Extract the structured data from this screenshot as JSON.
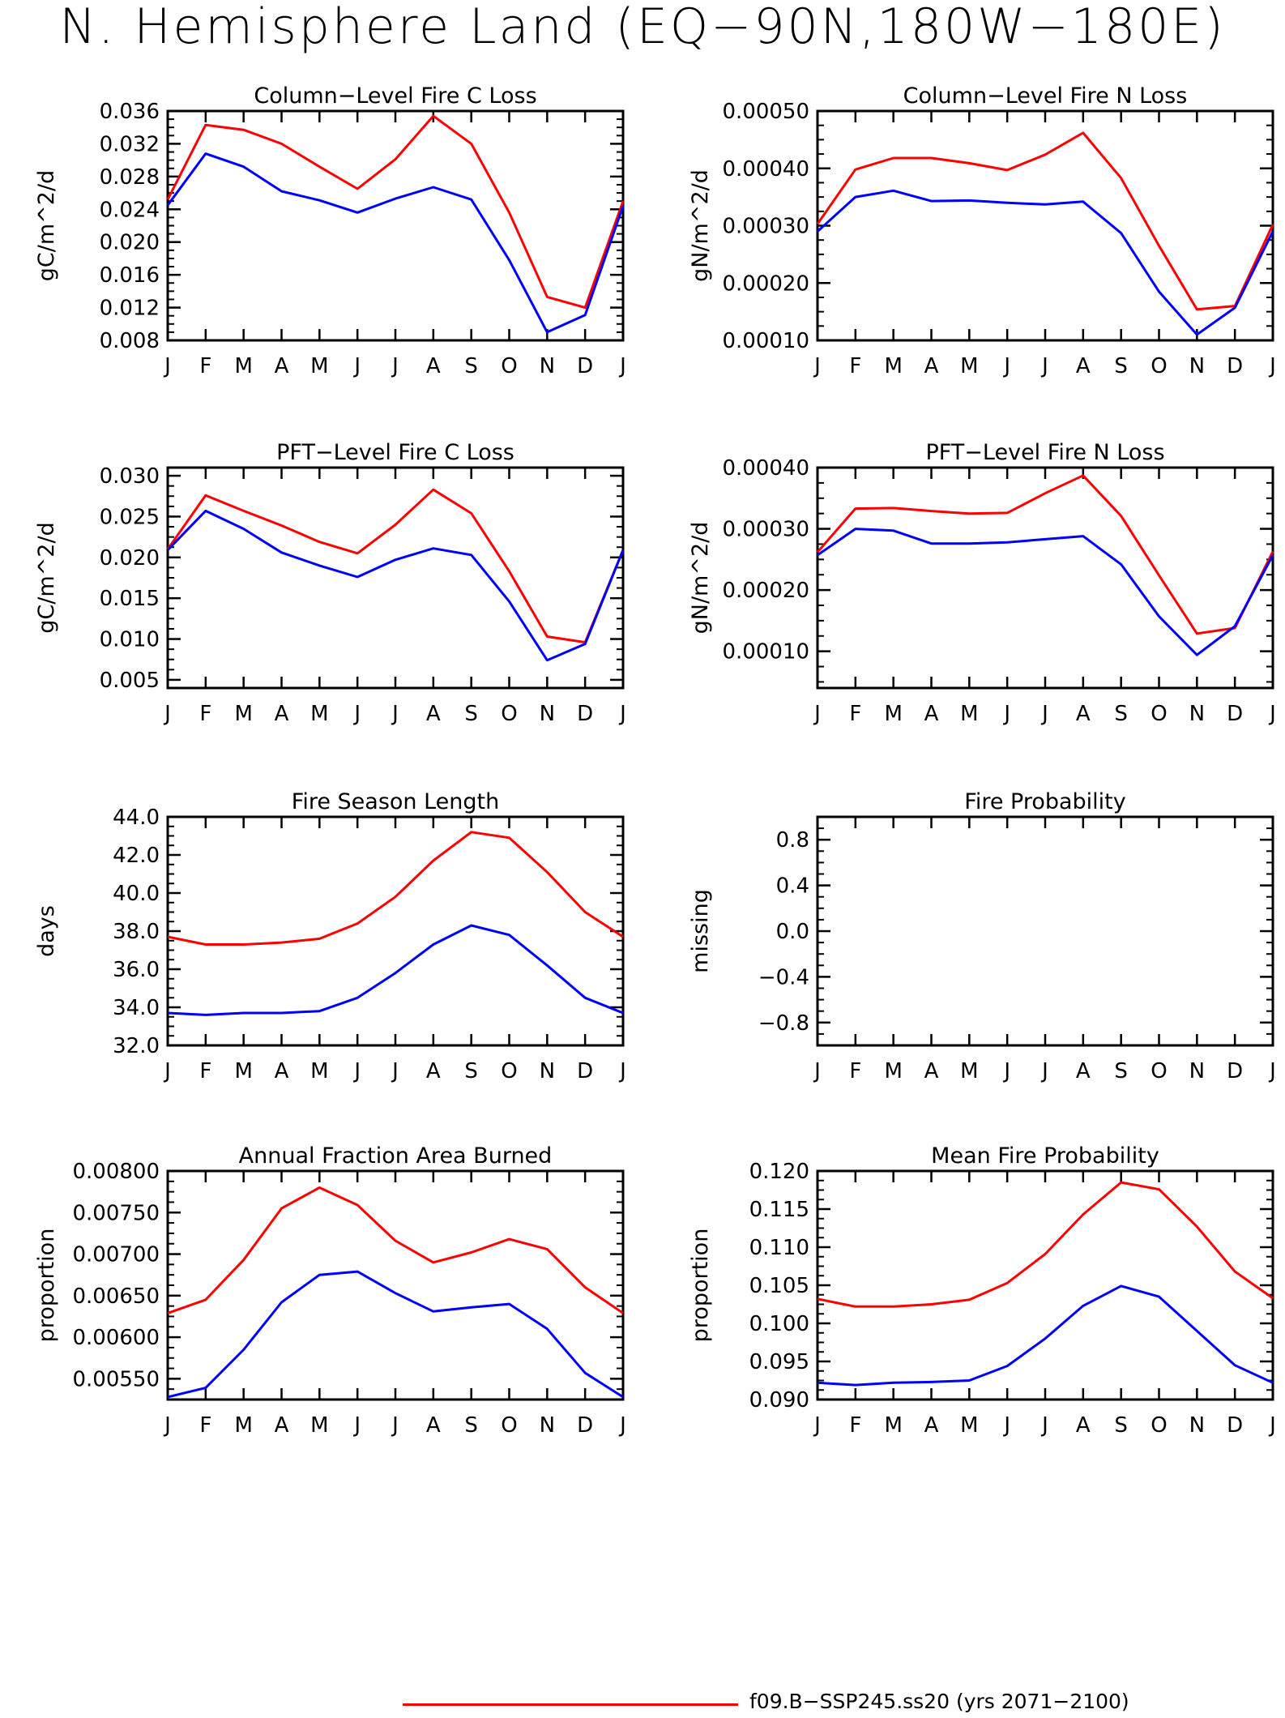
{
  "figure": {
    "title": "N. Hemisphere Land (EQ−90N,180W−180E)",
    "legend": [
      {
        "label": "f09.B−SSP245.ss20 (yrs 2071−2100)",
        "color": "#ff0000"
      }
    ]
  },
  "chart_data": [
    {
      "type": "line",
      "title": "Column−Level Fire C Loss",
      "ylabel": "gC/m^2/d",
      "xlabel": "",
      "categories": [
        "J",
        "F",
        "M",
        "A",
        "M",
        "J",
        "J",
        "A",
        "S",
        "O",
        "N",
        "D",
        "J"
      ],
      "ylim": [
        0.008,
        0.036
      ],
      "yticks": [
        0.008,
        0.012,
        0.016,
        0.02,
        0.024,
        0.028,
        0.032,
        0.036
      ],
      "ytick_labels": [
        "0.008",
        "0.012",
        "0.016",
        "0.020",
        "0.024",
        "0.028",
        "0.032",
        "0.036"
      ],
      "series": [
        {
          "color": "#ff0000",
          "values": [
            0.0252,
            0.0343,
            0.0337,
            0.032,
            0.0292,
            0.0265,
            0.0301,
            0.0354,
            0.032,
            0.0236,
            0.0133,
            0.012,
            0.025
          ]
        },
        {
          "color": "#0000ff",
          "values": [
            0.0245,
            0.0308,
            0.0292,
            0.0262,
            0.0251,
            0.0236,
            0.0253,
            0.0267,
            0.0252,
            0.0178,
            0.009,
            0.0111,
            0.0244
          ]
        }
      ]
    },
    {
      "type": "line",
      "title": "Column−Level Fire N Loss",
      "ylabel": "gN/m^2/d",
      "xlabel": "",
      "categories": [
        "J",
        "F",
        "M",
        "A",
        "M",
        "J",
        "J",
        "A",
        "S",
        "O",
        "N",
        "D",
        "J"
      ],
      "ylim": [
        0.0001,
        0.0005
      ],
      "yticks": [
        0.0001,
        0.0002,
        0.0003,
        0.0004,
        0.0005
      ],
      "ytick_labels": [
        "0.00010",
        "0.00020",
        "0.00030",
        "0.00040",
        "0.00050"
      ],
      "series": [
        {
          "color": "#ff0000",
          "values": [
            0.000303,
            0.000398,
            0.000418,
            0.000418,
            0.000409,
            0.000397,
            0.000424,
            0.000462,
            0.000383,
            0.000265,
            0.000154,
            0.00016,
            0.000302
          ]
        },
        {
          "color": "#0000ff",
          "values": [
            0.00029,
            0.00035,
            0.000361,
            0.000343,
            0.000344,
            0.00034,
            0.000337,
            0.000342,
            0.000287,
            0.000185,
            0.00011,
            0.000157,
            0.00029
          ]
        }
      ]
    },
    {
      "type": "line",
      "title": "PFT−Level Fire C Loss",
      "ylabel": "gC/m^2/d",
      "xlabel": "",
      "categories": [
        "J",
        "F",
        "M",
        "A",
        "M",
        "J",
        "J",
        "A",
        "S",
        "O",
        "N",
        "D",
        "J"
      ],
      "ylim": [
        0.004,
        0.031
      ],
      "yticks": [
        0.005,
        0.01,
        0.015,
        0.02,
        0.025,
        0.03
      ],
      "ytick_labels": [
        "0.005",
        "0.010",
        "0.015",
        "0.020",
        "0.025",
        "0.030"
      ],
      "series": [
        {
          "color": "#ff0000",
          "values": [
            0.021,
            0.0276,
            0.0257,
            0.0239,
            0.0219,
            0.0205,
            0.024,
            0.0283,
            0.0254,
            0.0183,
            0.0103,
            0.0096,
            0.0209
          ]
        },
        {
          "color": "#0000ff",
          "values": [
            0.0209,
            0.0257,
            0.0235,
            0.0206,
            0.019,
            0.0176,
            0.0197,
            0.0211,
            0.0203,
            0.0146,
            0.0074,
            0.0094,
            0.0209
          ]
        }
      ]
    },
    {
      "type": "line",
      "title": "PFT−Level Fire N Loss",
      "ylabel": "gN/m^2/d",
      "xlabel": "",
      "categories": [
        "J",
        "F",
        "M",
        "A",
        "M",
        "J",
        "J",
        "A",
        "S",
        "O",
        "N",
        "D",
        "J"
      ],
      "ylim": [
        4e-05,
        0.0004
      ],
      "yticks": [
        0.0001,
        0.0002,
        0.0003,
        0.0004
      ],
      "ytick_labels": [
        "0.00010",
        "0.00020",
        "0.00030",
        "0.00040"
      ],
      "series": [
        {
          "color": "#ff0000",
          "values": [
            0.000262,
            0.000333,
            0.000334,
            0.000329,
            0.000325,
            0.000326,
            0.000358,
            0.000387,
            0.000321,
            0.000224,
            0.000129,
            0.000138,
            0.000263
          ]
        },
        {
          "color": "#0000ff",
          "values": [
            0.000257,
            0.0003,
            0.000297,
            0.000276,
            0.000276,
            0.000278,
            0.000283,
            0.000288,
            0.000242,
            0.000157,
            9.4e-05,
            0.000141,
            0.000257
          ]
        }
      ]
    },
    {
      "type": "line",
      "title": "Fire Season Length",
      "ylabel": "days",
      "xlabel": "",
      "categories": [
        "J",
        "F",
        "M",
        "A",
        "M",
        "J",
        "J",
        "A",
        "S",
        "O",
        "N",
        "D",
        "J"
      ],
      "ylim": [
        32.0,
        44.0
      ],
      "yticks": [
        32,
        34,
        36,
        38,
        40,
        42,
        44
      ],
      "ytick_labels": [
        "32.0",
        "34.0",
        "36.0",
        "38.0",
        "40.0",
        "42.0",
        "44.0"
      ],
      "series": [
        {
          "color": "#ff0000",
          "values": [
            37.7,
            37.3,
            37.3,
            37.4,
            37.6,
            38.4,
            39.8,
            41.7,
            43.2,
            42.9,
            41.1,
            39.0,
            37.7
          ]
        },
        {
          "color": "#0000ff",
          "values": [
            33.7,
            33.6,
            33.7,
            33.7,
            33.8,
            34.5,
            35.8,
            37.3,
            38.3,
            37.8,
            36.2,
            34.5,
            33.7
          ]
        }
      ]
    },
    {
      "type": "line",
      "title": "Fire Probability",
      "ylabel": "missing",
      "xlabel": "",
      "categories": [
        "J",
        "F",
        "M",
        "A",
        "M",
        "J",
        "J",
        "A",
        "S",
        "O",
        "N",
        "D",
        "J"
      ],
      "ylim": [
        -1.0,
        1.0
      ],
      "yticks": [
        -0.8,
        -0.4,
        0.0,
        0.4,
        0.8
      ],
      "ytick_labels": [
        "−0.8",
        "−0.4",
        "0.0",
        "0.4",
        "0.8"
      ],
      "series": []
    },
    {
      "type": "line",
      "title": "Annual Fraction Area Burned",
      "ylabel": "proportion",
      "xlabel": "",
      "categories": [
        "J",
        "F",
        "M",
        "A",
        "M",
        "J",
        "J",
        "A",
        "S",
        "O",
        "N",
        "D",
        "J"
      ],
      "ylim": [
        0.00525,
        0.008
      ],
      "yticks": [
        0.0055,
        0.006,
        0.0065,
        0.007,
        0.0075,
        0.008
      ],
      "ytick_labels": [
        "0.00550",
        "0.00600",
        "0.00650",
        "0.00700",
        "0.00750",
        "0.00800"
      ],
      "series": [
        {
          "color": "#ff0000",
          "values": [
            0.00629,
            0.00645,
            0.00693,
            0.00755,
            0.0078,
            0.00759,
            0.00716,
            0.0069,
            0.00702,
            0.00718,
            0.00706,
            0.0066,
            0.00629
          ]
        },
        {
          "color": "#0000ff",
          "values": [
            0.00528,
            0.00539,
            0.00585,
            0.00642,
            0.00675,
            0.00679,
            0.00653,
            0.00631,
            0.00636,
            0.0064,
            0.0061,
            0.00557,
            0.00528
          ]
        }
      ]
    },
    {
      "type": "line",
      "title": "Mean Fire Probability",
      "ylabel": "proportion",
      "xlabel": "",
      "categories": [
        "J",
        "F",
        "M",
        "A",
        "M",
        "J",
        "J",
        "A",
        "S",
        "O",
        "N",
        "D",
        "J"
      ],
      "ylim": [
        0.09,
        0.12
      ],
      "yticks": [
        0.09,
        0.095,
        0.1,
        0.105,
        0.11,
        0.115,
        0.12
      ],
      "ytick_labels": [
        "0.090",
        "0.095",
        "0.100",
        "0.105",
        "0.110",
        "0.115",
        "0.120"
      ],
      "series": [
        {
          "color": "#ff0000",
          "values": [
            0.1032,
            0.1022,
            0.1022,
            0.1025,
            0.1031,
            0.1053,
            0.1091,
            0.1143,
            0.1185,
            0.1176,
            0.1127,
            0.1068,
            0.1033
          ]
        },
        {
          "color": "#0000ff",
          "values": [
            0.0922,
            0.0919,
            0.0922,
            0.0923,
            0.0925,
            0.0944,
            0.098,
            0.1023,
            0.1049,
            0.1035,
            0.099,
            0.0945,
            0.0922
          ]
        }
      ]
    }
  ]
}
